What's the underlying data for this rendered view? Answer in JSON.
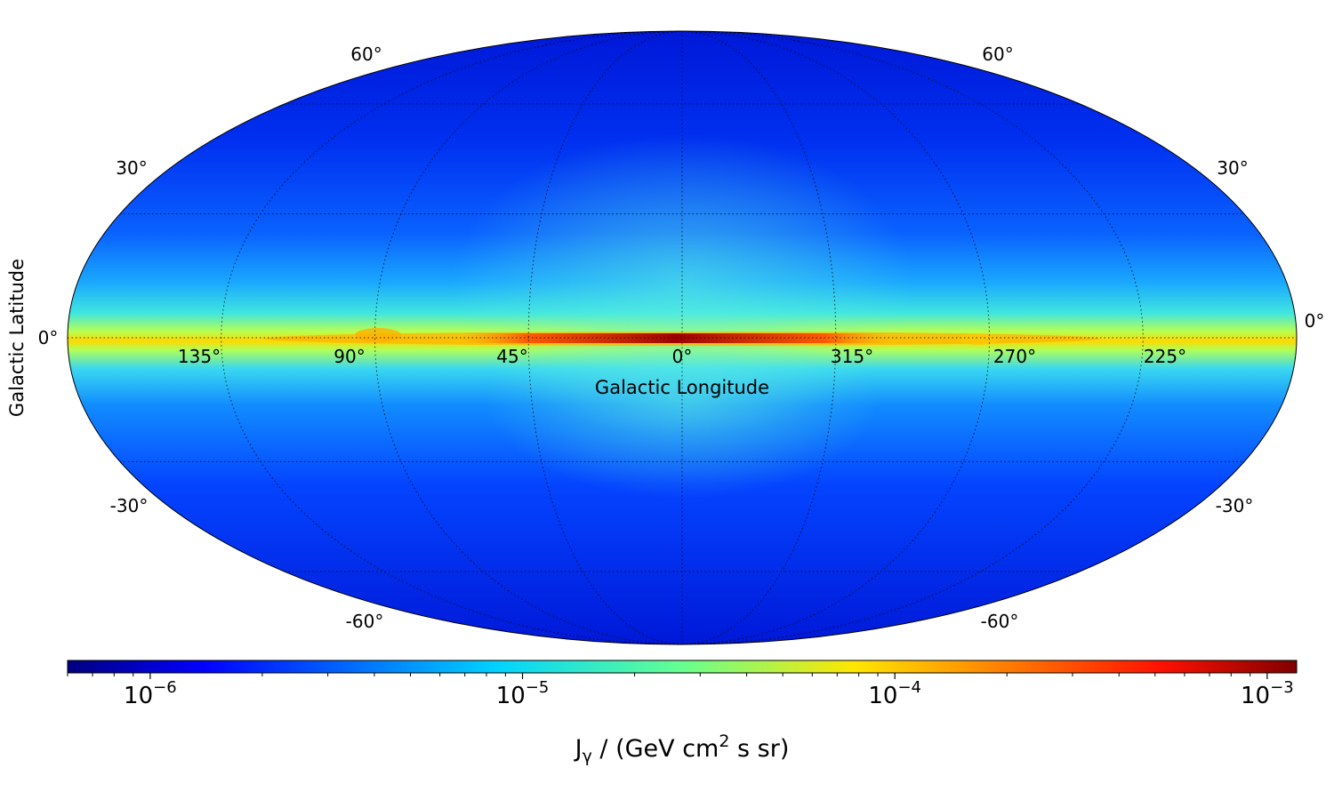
{
  "chart_data": {
    "type": "heatmap",
    "projection": "mollweide",
    "grid": true,
    "xlabel": "Galactic Longitude",
    "ylabel": "Galactic Latitude",
    "longitude_tick_labels": [
      "135°",
      "90°",
      "45°",
      "0°",
      "315°",
      "270°",
      "225°"
    ],
    "longitude_ticks_deg": [
      135,
      90,
      45,
      0,
      -45,
      -90,
      -135
    ],
    "latitude_ticks_deg": [
      60,
      30,
      0,
      -30,
      -60
    ],
    "latitude_tick_labels": {
      "60": "60°",
      "30": "30°",
      "0": "0°",
      "-30": "-30°",
      "-60": "-60°"
    },
    "colormap": "jet",
    "colorbar": {
      "scale": "log",
      "range": [
        6e-07,
        0.0012
      ],
      "ticks": [
        1e-06,
        1e-05,
        0.0001,
        0.001
      ],
      "tick_base": "10",
      "tick_exponents": [
        "−6",
        "−5",
        "−4",
        "−3"
      ],
      "label_main": "J",
      "label_sub": "γ",
      "label_mid": " / (GeV cm",
      "label_sup": "2",
      "label_end": " s sr)"
    },
    "map_description_values": {
      "galactic_plane_peak": 0.001,
      "galactic_plane_typical": 0.0001,
      "mid_latitude_typical": 1e-05,
      "high_latitude_typical": 2e-06
    }
  }
}
